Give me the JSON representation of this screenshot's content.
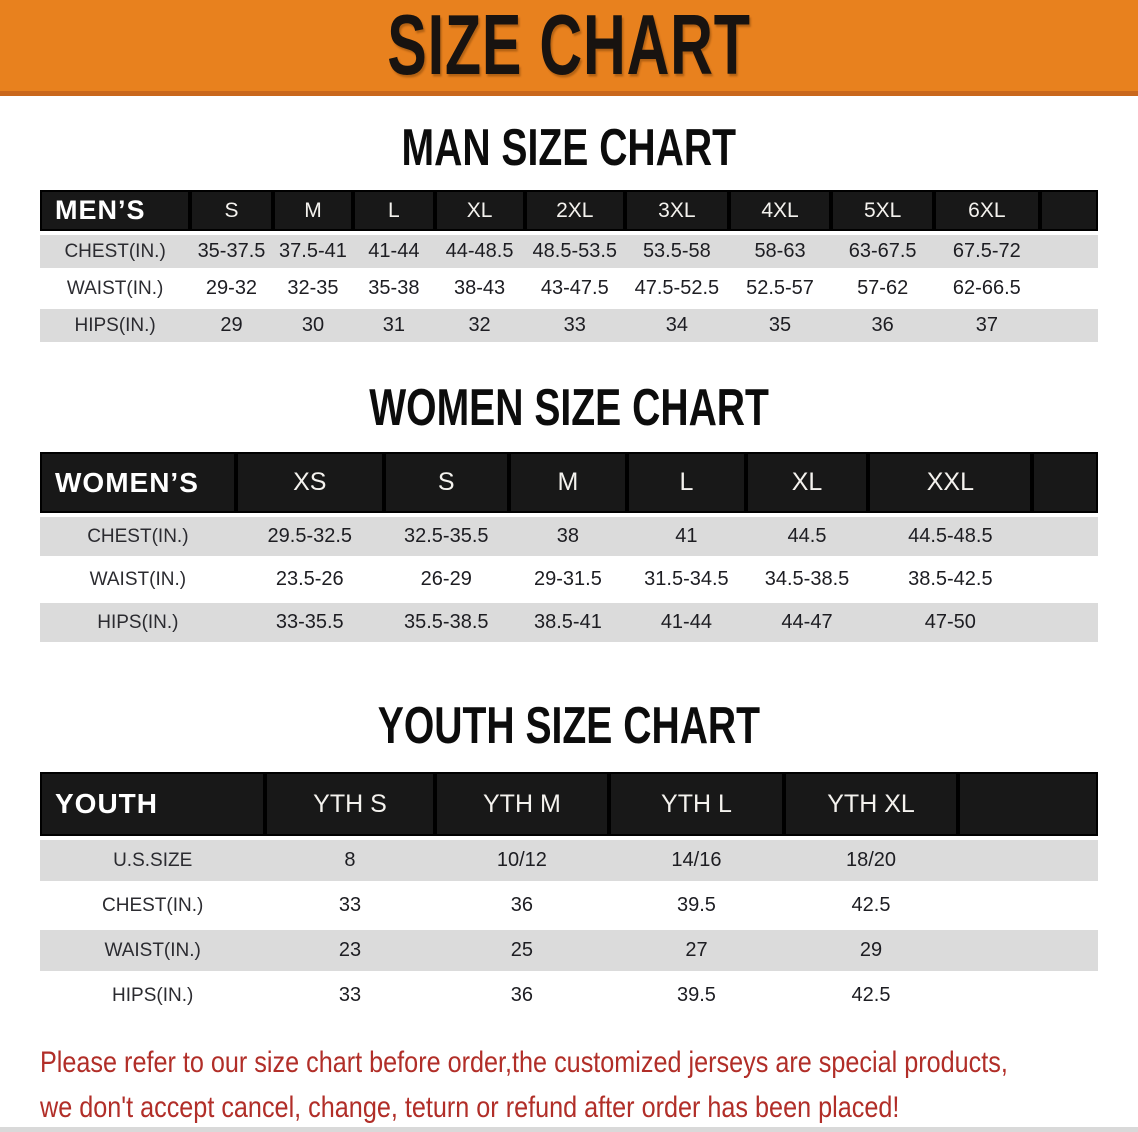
{
  "banner": {
    "title": "SIZE CHART"
  },
  "colors": {
    "banner-bg": "#E8811E",
    "banner-edge": "#C9671C",
    "header-bar": "#181818",
    "row-gray": "#DBDBDB",
    "disclaimer-red": "#B12E28"
  },
  "sections": {
    "men": {
      "heading": "MAN SIZE CHART",
      "table": {
        "corner": "MEN’S",
        "columns": [
          "S",
          "M",
          "L",
          "XL",
          "2XL",
          "3XL",
          "4XL",
          "5XL",
          "6XL"
        ],
        "rows": [
          {
            "label": "CHEST(IN.)",
            "values": [
              "35-37.5",
              "37.5-41",
              "41-44",
              "44-48.5",
              "48.5-53.5",
              "53.5-58",
              "58-63",
              "63-67.5",
              "67.5-72"
            ]
          },
          {
            "label": "WAIST(IN.)",
            "values": [
              "29-32",
              "32-35",
              "35-38",
              "38-43",
              "43-47.5",
              "47.5-52.5",
              "52.5-57",
              "57-62",
              "62-66.5"
            ]
          },
          {
            "label": "HIPS(IN.)",
            "values": [
              "29",
              "30",
              "31",
              "32",
              "33",
              "34",
              "35",
              "36",
              "37"
            ]
          }
        ]
      }
    },
    "women": {
      "heading": "WOMEN SIZE CHART",
      "table": {
        "corner": "WOMEN’S",
        "columns": [
          "XS",
          "S",
          "M",
          "L",
          "XL",
          "XXL"
        ],
        "rows": [
          {
            "label": "CHEST(IN.)",
            "values": [
              "29.5-32.5",
              "32.5-35.5",
              "38",
              "41",
              "44.5",
              "44.5-48.5"
            ]
          },
          {
            "label": "WAIST(IN.)",
            "values": [
              "23.5-26",
              "26-29",
              "29-31.5",
              "31.5-34.5",
              "34.5-38.5",
              "38.5-42.5"
            ]
          },
          {
            "label": "HIPS(IN.)",
            "values": [
              "33-35.5",
              "35.5-38.5",
              "38.5-41",
              "41-44",
              "44-47",
              "47-50"
            ]
          }
        ]
      }
    },
    "youth": {
      "heading": "YOUTH SIZE CHART",
      "table": {
        "corner": "YOUTH",
        "columns": [
          "YTH S",
          "YTH M",
          "YTH L",
          "YTH XL"
        ],
        "rows": [
          {
            "label": "U.S.SIZE",
            "values": [
              "8",
              "10/12",
              "14/16",
              "18/20"
            ]
          },
          {
            "label": "CHEST(IN.)",
            "values": [
              "33",
              "36",
              "39.5",
              "42.5"
            ]
          },
          {
            "label": "WAIST(IN.)",
            "values": [
              "23",
              "25",
              "27",
              "29"
            ]
          },
          {
            "label": "HIPS(IN.)",
            "values": [
              "33",
              "36",
              "39.5",
              "42.5"
            ]
          }
        ]
      }
    }
  },
  "disclaimer": {
    "line1": "Please refer to our size chart before order,the customized jerseys are special products,",
    "line2": "we don't accept cancel, change, teturn or refund after order has been placed!"
  }
}
